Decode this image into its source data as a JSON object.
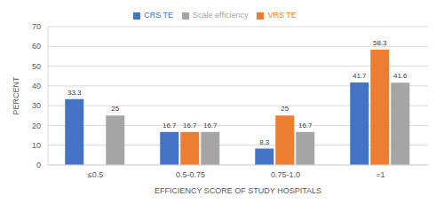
{
  "chart_data": {
    "type": "bar",
    "categories": [
      "≤0.5",
      "0.5-0.75",
      "0.75-1.0",
      "=1"
    ],
    "series": [
      {
        "name": "CRS TE",
        "color": "#4472c4",
        "values": [
          33.3,
          16.7,
          8.3,
          41.7
        ]
      },
      {
        "name": "VRS TE",
        "color": "#ed7d31",
        "values": [
          0,
          16.7,
          25,
          58.3
        ]
      },
      {
        "name": "Scale efficiency",
        "color": "#a5a5a5",
        "values": [
          25,
          16.7,
          16.7,
          41.6
        ]
      }
    ],
    "xlabel": "EFFICIENCY SCORE OF STUDY HOSPITALS",
    "ylabel": "PERCENT",
    "ylim": [
      0,
      70
    ],
    "yticks": [
      0,
      10,
      20,
      30,
      40,
      50,
      60,
      70
    ],
    "grid": true,
    "legend": "top",
    "data_labels": true
  }
}
